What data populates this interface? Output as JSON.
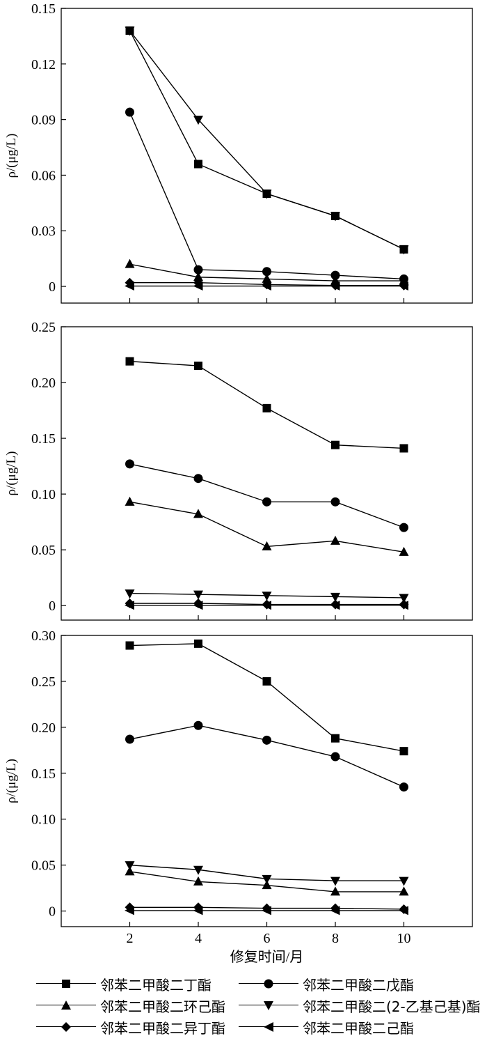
{
  "chart_data": [
    {
      "type": "line",
      "ylabel": "ρ/(μg/L)",
      "xlabel": "",
      "x": [
        2,
        4,
        6,
        8,
        10
      ],
      "xlim": [
        0,
        12
      ],
      "ylim": [
        -0.009,
        0.15
      ],
      "yticks": [
        0,
        0.03,
        0.06,
        0.09,
        0.12,
        0.15
      ],
      "ytick_labels": [
        "0",
        "0.03",
        "0.06",
        "0.09",
        "0.12",
        "0.15"
      ],
      "xticks": [
        2,
        4,
        6,
        8,
        10
      ],
      "xtick_labels": [
        "",
        "",
        "",
        "",
        ""
      ],
      "series": [
        {
          "name": "邻苯二甲酸二丁酯",
          "marker": "square",
          "values": [
            0.138,
            0.066,
            0.05,
            0.038,
            0.02
          ]
        },
        {
          "name": "邻苯二甲酸二戊酯",
          "marker": "circle",
          "values": [
            0.094,
            0.009,
            0.008,
            0.006,
            0.004
          ]
        },
        {
          "name": "邻苯二甲酸二环己酯",
          "marker": "triangle-up",
          "values": [
            0.012,
            0.005,
            0.004,
            0.003,
            0.003
          ]
        },
        {
          "name": "邻苯二甲酸二(2-乙基己基)酯",
          "marker": "triangle-down",
          "values": [
            0.138,
            0.09,
            0.05,
            0.038,
            0.02
          ]
        },
        {
          "name": "邻苯二甲酸二异丁酯",
          "marker": "diamond",
          "values": [
            0.002,
            0.002,
            0.001,
            0.0005,
            0.0005
          ]
        },
        {
          "name": "邻苯二甲酸二己酯",
          "marker": "triangle-left",
          "values": [
            0.0002,
            0.0002,
            0.0002,
            0.0002,
            0.0002
          ]
        }
      ]
    },
    {
      "type": "line",
      "ylabel": "ρ/(μg/L)",
      "xlabel": "",
      "x": [
        2,
        4,
        6,
        8,
        10
      ],
      "xlim": [
        0,
        12
      ],
      "ylim": [
        -0.013,
        0.25
      ],
      "yticks": [
        0,
        0.05,
        0.1,
        0.15,
        0.2,
        0.25
      ],
      "ytick_labels": [
        "0",
        "0.05",
        "0.10",
        "0.15",
        "0.20",
        "0.25"
      ],
      "xticks": [
        2,
        4,
        6,
        8,
        10
      ],
      "xtick_labels": [
        "",
        "",
        "",
        "",
        ""
      ],
      "series": [
        {
          "name": "邻苯二甲酸二丁酯",
          "marker": "square",
          "values": [
            0.219,
            0.215,
            0.177,
            0.144,
            0.141
          ]
        },
        {
          "name": "邻苯二甲酸二戊酯",
          "marker": "circle",
          "values": [
            0.127,
            0.114,
            0.093,
            0.093,
            0.07
          ]
        },
        {
          "name": "邻苯二甲酸二环己酯",
          "marker": "triangle-up",
          "values": [
            0.093,
            0.082,
            0.053,
            0.058,
            0.048
          ]
        },
        {
          "name": "邻苯二甲酸二(2-乙基己基)酯",
          "marker": "triangle-down",
          "values": [
            0.011,
            0.01,
            0.009,
            0.008,
            0.007
          ]
        },
        {
          "name": "邻苯二甲酸二异丁酯",
          "marker": "diamond",
          "values": [
            0.002,
            0.002,
            0.001,
            0.001,
            0.001
          ]
        },
        {
          "name": "邻苯二甲酸二己酯",
          "marker": "triangle-left",
          "values": [
            0.0003,
            0.0003,
            0.0003,
            0.0003,
            0.0003
          ]
        }
      ]
    },
    {
      "type": "line",
      "ylabel": "ρ/(μg/L)",
      "xlabel": "修复时间/月",
      "x": [
        2,
        4,
        6,
        8,
        10
      ],
      "xlim": [
        0,
        12
      ],
      "ylim": [
        -0.017,
        0.3
      ],
      "yticks": [
        0,
        0.05,
        0.1,
        0.15,
        0.2,
        0.25,
        0.3
      ],
      "ytick_labels": [
        "0",
        "0.05",
        "0.10",
        "0.15",
        "0.20",
        "0.25",
        "0.30"
      ],
      "xticks": [
        2,
        4,
        6,
        8,
        10
      ],
      "xtick_labels": [
        "2",
        "4",
        "6",
        "8",
        "10"
      ],
      "series": [
        {
          "name": "邻苯二甲酸二丁酯",
          "marker": "square",
          "values": [
            0.289,
            0.291,
            0.25,
            0.188,
            0.174
          ]
        },
        {
          "name": "邻苯二甲酸二戊酯",
          "marker": "circle",
          "values": [
            0.187,
            0.202,
            0.186,
            0.168,
            0.135
          ]
        },
        {
          "name": "邻苯二甲酸二环己酯",
          "marker": "triangle-up",
          "values": [
            0.043,
            0.032,
            0.028,
            0.021,
            0.021
          ]
        },
        {
          "name": "邻苯二甲酸二(2-乙基己基)酯",
          "marker": "triangle-down",
          "values": [
            0.05,
            0.045,
            0.035,
            0.033,
            0.033
          ]
        },
        {
          "name": "邻苯二甲酸二异丁酯",
          "marker": "diamond",
          "values": [
            0.004,
            0.004,
            0.003,
            0.003,
            0.002
          ]
        },
        {
          "name": "邻苯二甲酸二己酯",
          "marker": "triangle-left",
          "values": [
            0.0005,
            0.0005,
            0.0005,
            0.0005,
            0.0005
          ]
        }
      ]
    }
  ],
  "legend": {
    "placement": "bottom",
    "items": [
      {
        "label": "邻苯二甲酸二丁酯",
        "marker": "square"
      },
      {
        "label": "邻苯二甲酸二戊酯",
        "marker": "circle"
      },
      {
        "label": "邻苯二甲酸二环己酯",
        "marker": "triangle-up"
      },
      {
        "label": "邻苯二甲酸二(2-乙基己基)酯",
        "marker": "triangle-down"
      },
      {
        "label": "邻苯二甲酸二异丁酯",
        "marker": "diamond"
      },
      {
        "label": "邻苯二甲酸二己酯",
        "marker": "triangle-left"
      }
    ]
  }
}
